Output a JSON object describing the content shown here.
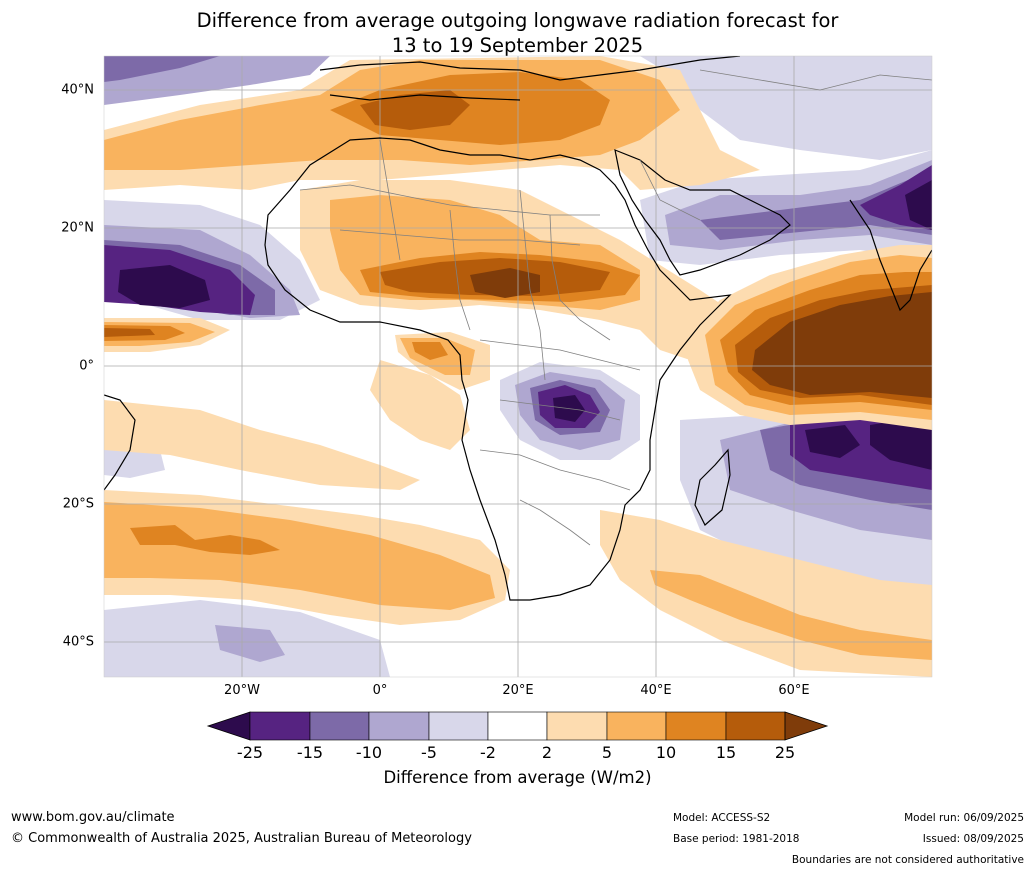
{
  "title": {
    "line1": "Difference from average outgoing longwave radiation forecast for",
    "line2": "13 to 19 September 2025"
  },
  "map": {
    "lat_labels": [
      "40°N",
      "20°N",
      "0°",
      "20°S",
      "40°S"
    ],
    "lon_labels": [
      "20°W",
      "0°",
      "20°E",
      "40°E",
      "60°E"
    ]
  },
  "colorbar": {
    "title": "Difference from average (W/m2)",
    "ticks": [
      "-25",
      "-15",
      "-10",
      "-5",
      "-2",
      "2",
      "5",
      "10",
      "15",
      "25"
    ],
    "colors": {
      "lt_-25": "#2d0b4d",
      "-25_-15": "#562381",
      "-15_-10": "#7d6aa8",
      "-10_-5": "#afa7d0",
      "-5_-2": "#d8d7ea",
      "-2_2": "#ffffff",
      "2_5": "#fddcb0",
      "5_10": "#f9b35e",
      "10_15": "#df8421",
      "15_25": "#b55c0b",
      "gt_25": "#7f3c0a"
    }
  },
  "footer": {
    "website": "www.bom.gov.au/climate",
    "copyright": "© Commonwealth of Australia 2025, Australian Bureau of Meteorology",
    "model": "Model: ACCESS-S2",
    "base_period": "Base period: 1981-2018",
    "model_run": "Model run: 06/09/2025",
    "issued": "Issued: 08/09/2025",
    "disclaimer": "Boundaries are not considered authoritative"
  }
}
